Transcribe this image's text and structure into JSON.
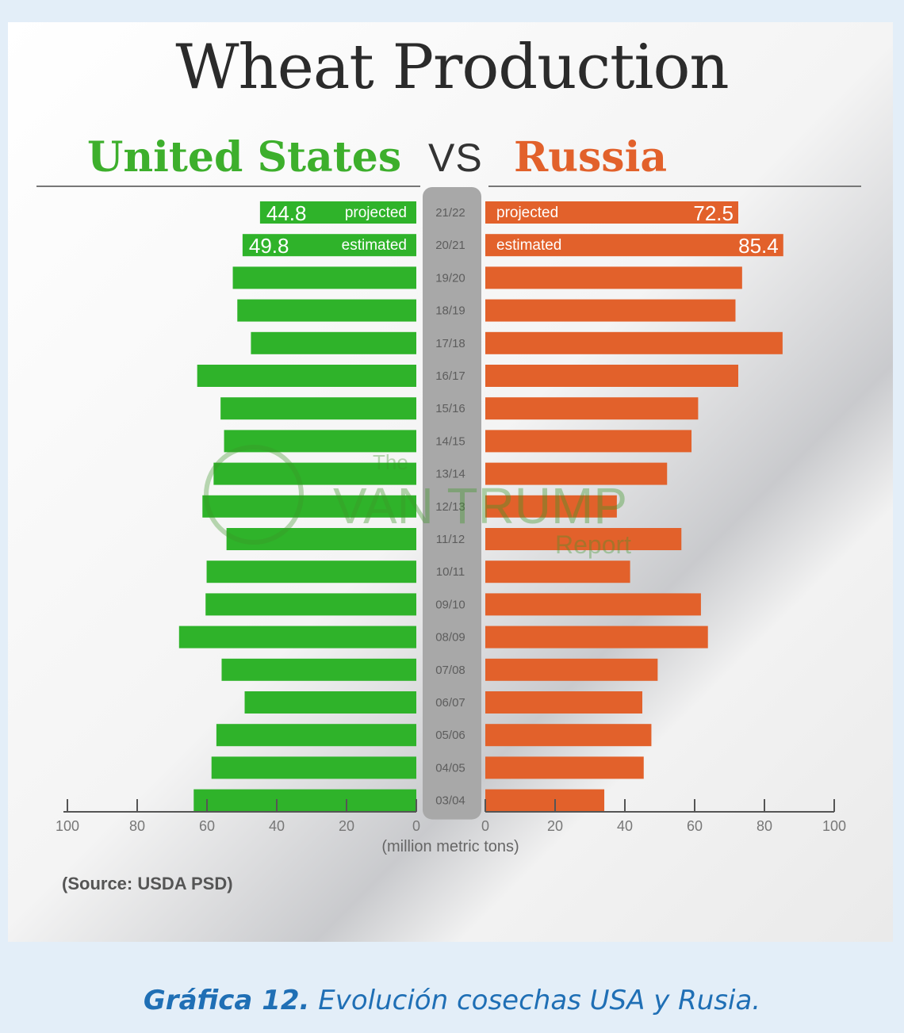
{
  "caption": {
    "label": "Gráfica 12.",
    "text": " Evolución cosechas USA y Rusia."
  },
  "colors": {
    "us": "#2fb32a",
    "russia": "#e2612b",
    "center_strip": "#a8a8a8"
  },
  "chart_data": {
    "type": "bar",
    "title": "Wheat Production",
    "left_label": "United States",
    "separator": "VS",
    "right_label": "Russia",
    "xlabel": "(million metric tons)",
    "source": "(Source: USDA PSD)",
    "xlim": [
      0,
      100
    ],
    "x_ticks": [
      "100",
      "80",
      "60",
      "40",
      "20",
      "0",
      "0",
      "20",
      "40",
      "60",
      "80",
      "100"
    ],
    "categories": [
      "21/22",
      "20/21",
      "19/20",
      "18/19",
      "17/18",
      "16/17",
      "15/16",
      "14/15",
      "13/14",
      "12/13",
      "11/12",
      "10/11",
      "09/10",
      "08/09",
      "07/08",
      "06/07",
      "05/06",
      "04/05",
      "03/04"
    ],
    "series": [
      {
        "name": "United States",
        "values": [
          44.8,
          49.8,
          52.6,
          51.3,
          47.4,
          62.8,
          56.1,
          55.1,
          58.1,
          61.3,
          54.4,
          60.1,
          60.4,
          68.0,
          55.8,
          49.2,
          57.3,
          58.7,
          63.8
        ]
      },
      {
        "name": "Russia",
        "values": [
          72.5,
          85.4,
          73.6,
          71.7,
          85.2,
          72.5,
          61.0,
          59.1,
          52.1,
          37.7,
          56.2,
          41.5,
          61.8,
          63.8,
          49.4,
          45.0,
          47.6,
          45.4,
          34.1
        ]
      }
    ],
    "bar_annotations": [
      {
        "row": "21/22",
        "us_value": "44.8",
        "us_note": "projected",
        "ru_note": "projected",
        "ru_value": "72.5"
      },
      {
        "row": "20/21",
        "us_value": "49.8",
        "us_note": "estimated",
        "ru_note": "estimated",
        "ru_value": "85.4"
      }
    ],
    "watermark": {
      "small": "The",
      "main": "VAN TRUMP",
      "sub": "Report"
    }
  }
}
